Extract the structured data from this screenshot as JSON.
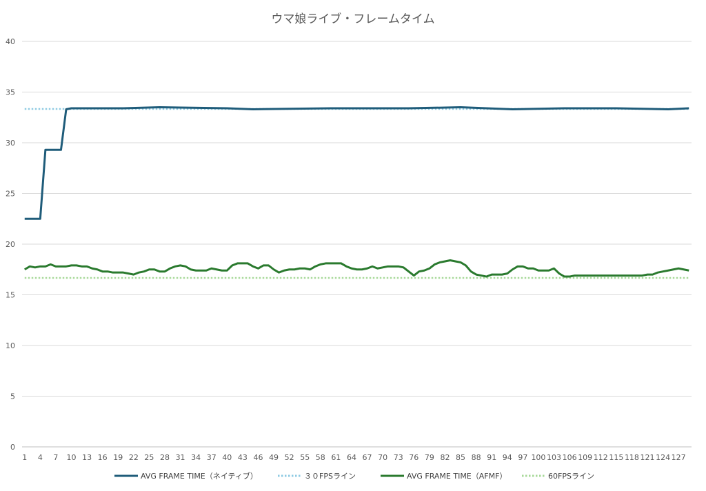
{
  "chart_data": {
    "type": "line",
    "title": "ウマ娘ライブ・フレームタイム",
    "xlabel": "",
    "ylabel": "",
    "ylim": [
      0,
      40
    ],
    "yticks": [
      0,
      5,
      10,
      15,
      20,
      25,
      30,
      35,
      40
    ],
    "xlim": [
      1,
      129
    ],
    "xtick_labels": [
      "1",
      "4",
      "7",
      "10",
      "13",
      "16",
      "19",
      "22",
      "25",
      "28",
      "31",
      "34",
      "37",
      "40",
      "43",
      "46",
      "49",
      "52",
      "55",
      "58",
      "61",
      "64",
      "67",
      "70",
      "73",
      "76",
      "79",
      "82",
      "85",
      "88",
      "91",
      "94",
      "97",
      "100",
      "103",
      "106",
      "109",
      "112",
      "115",
      "118",
      "121",
      "124",
      "127"
    ],
    "grid": "horizontal",
    "legend_position": "bottom",
    "series": [
      {
        "name": "AVG FRAME TIME（ネイティブ）",
        "style": "solid",
        "color": "#1f5c7a",
        "points": [
          [
            1,
            22.5
          ],
          [
            3,
            22.5
          ],
          [
            4,
            22.5
          ],
          [
            5,
            29.3
          ],
          [
            6,
            29.3
          ],
          [
            7,
            29.3
          ],
          [
            8,
            29.3
          ],
          [
            9,
            33.3
          ],
          [
            10,
            33.4
          ],
          [
            20,
            33.4
          ],
          [
            27,
            33.5
          ],
          [
            40,
            33.4
          ],
          [
            45,
            33.3
          ],
          [
            60,
            33.4
          ],
          [
            75,
            33.4
          ],
          [
            85,
            33.5
          ],
          [
            95,
            33.3
          ],
          [
            105,
            33.4
          ],
          [
            115,
            33.4
          ],
          [
            125,
            33.3
          ],
          [
            129,
            33.4
          ]
        ]
      },
      {
        "name": "３０FPSライン",
        "style": "dotted",
        "color": "#8fcbe3",
        "points": [
          [
            1,
            33.33
          ],
          [
            129,
            33.33
          ]
        ]
      },
      {
        "name": "AVG FRAME TIME（AFMF）",
        "style": "solid",
        "color": "#2a7a2e",
        "points": [
          [
            1,
            17.5
          ],
          [
            2,
            17.8
          ],
          [
            3,
            17.7
          ],
          [
            4,
            17.8
          ],
          [
            5,
            17.8
          ],
          [
            6,
            18.0
          ],
          [
            7,
            17.8
          ],
          [
            8,
            17.8
          ],
          [
            9,
            17.8
          ],
          [
            10,
            17.9
          ],
          [
            11,
            17.9
          ],
          [
            12,
            17.8
          ],
          [
            13,
            17.8
          ],
          [
            14,
            17.6
          ],
          [
            15,
            17.5
          ],
          [
            16,
            17.3
          ],
          [
            17,
            17.3
          ],
          [
            18,
            17.2
          ],
          [
            19,
            17.2
          ],
          [
            20,
            17.2
          ],
          [
            21,
            17.1
          ],
          [
            22,
            17.0
          ],
          [
            23,
            17.2
          ],
          [
            24,
            17.3
          ],
          [
            25,
            17.5
          ],
          [
            26,
            17.5
          ],
          [
            27,
            17.3
          ],
          [
            28,
            17.3
          ],
          [
            29,
            17.6
          ],
          [
            30,
            17.8
          ],
          [
            31,
            17.9
          ],
          [
            32,
            17.8
          ],
          [
            33,
            17.5
          ],
          [
            34,
            17.4
          ],
          [
            35,
            17.4
          ],
          [
            36,
            17.4
          ],
          [
            37,
            17.6
          ],
          [
            38,
            17.5
          ],
          [
            39,
            17.4
          ],
          [
            40,
            17.4
          ],
          [
            41,
            17.9
          ],
          [
            42,
            18.1
          ],
          [
            43,
            18.1
          ],
          [
            44,
            18.1
          ],
          [
            45,
            17.8
          ],
          [
            46,
            17.6
          ],
          [
            47,
            17.9
          ],
          [
            48,
            17.9
          ],
          [
            49,
            17.5
          ],
          [
            50,
            17.2
          ],
          [
            51,
            17.4
          ],
          [
            52,
            17.5
          ],
          [
            53,
            17.5
          ],
          [
            54,
            17.6
          ],
          [
            55,
            17.6
          ],
          [
            56,
            17.5
          ],
          [
            57,
            17.8
          ],
          [
            58,
            18.0
          ],
          [
            59,
            18.1
          ],
          [
            60,
            18.1
          ],
          [
            61,
            18.1
          ],
          [
            62,
            18.1
          ],
          [
            63,
            17.8
          ],
          [
            64,
            17.6
          ],
          [
            65,
            17.5
          ],
          [
            66,
            17.5
          ],
          [
            67,
            17.6
          ],
          [
            68,
            17.8
          ],
          [
            69,
            17.6
          ],
          [
            70,
            17.7
          ],
          [
            71,
            17.8
          ],
          [
            72,
            17.8
          ],
          [
            73,
            17.8
          ],
          [
            74,
            17.7
          ],
          [
            75,
            17.3
          ],
          [
            76,
            16.9
          ],
          [
            77,
            17.3
          ],
          [
            78,
            17.4
          ],
          [
            79,
            17.6
          ],
          [
            80,
            18.0
          ],
          [
            81,
            18.2
          ],
          [
            82,
            18.3
          ],
          [
            83,
            18.4
          ],
          [
            84,
            18.3
          ],
          [
            85,
            18.2
          ],
          [
            86,
            17.9
          ],
          [
            87,
            17.3
          ],
          [
            88,
            17.0
          ],
          [
            89,
            16.9
          ],
          [
            90,
            16.8
          ],
          [
            91,
            17.0
          ],
          [
            92,
            17.0
          ],
          [
            93,
            17.0
          ],
          [
            94,
            17.1
          ],
          [
            95,
            17.5
          ],
          [
            96,
            17.8
          ],
          [
            97,
            17.8
          ],
          [
            98,
            17.6
          ],
          [
            99,
            17.6
          ],
          [
            100,
            17.4
          ],
          [
            101,
            17.4
          ],
          [
            102,
            17.4
          ],
          [
            103,
            17.6
          ],
          [
            104,
            17.1
          ],
          [
            105,
            16.8
          ],
          [
            106,
            16.8
          ],
          [
            107,
            16.9
          ],
          [
            108,
            16.9
          ],
          [
            109,
            16.9
          ],
          [
            110,
            16.9
          ],
          [
            111,
            16.9
          ],
          [
            112,
            16.9
          ],
          [
            113,
            16.9
          ],
          [
            114,
            16.9
          ],
          [
            115,
            16.9
          ],
          [
            116,
            16.9
          ],
          [
            117,
            16.9
          ],
          [
            118,
            16.9
          ],
          [
            119,
            16.9
          ],
          [
            120,
            16.9
          ],
          [
            121,
            17.0
          ],
          [
            122,
            17.0
          ],
          [
            123,
            17.2
          ],
          [
            124,
            17.3
          ],
          [
            125,
            17.4
          ],
          [
            126,
            17.5
          ],
          [
            127,
            17.6
          ],
          [
            128,
            17.5
          ],
          [
            129,
            17.4
          ]
        ]
      },
      {
        "name": "60FPSライン",
        "style": "dotted",
        "color": "#a8d99a",
        "points": [
          [
            1,
            16.67
          ],
          [
            129,
            16.67
          ]
        ]
      }
    ]
  }
}
